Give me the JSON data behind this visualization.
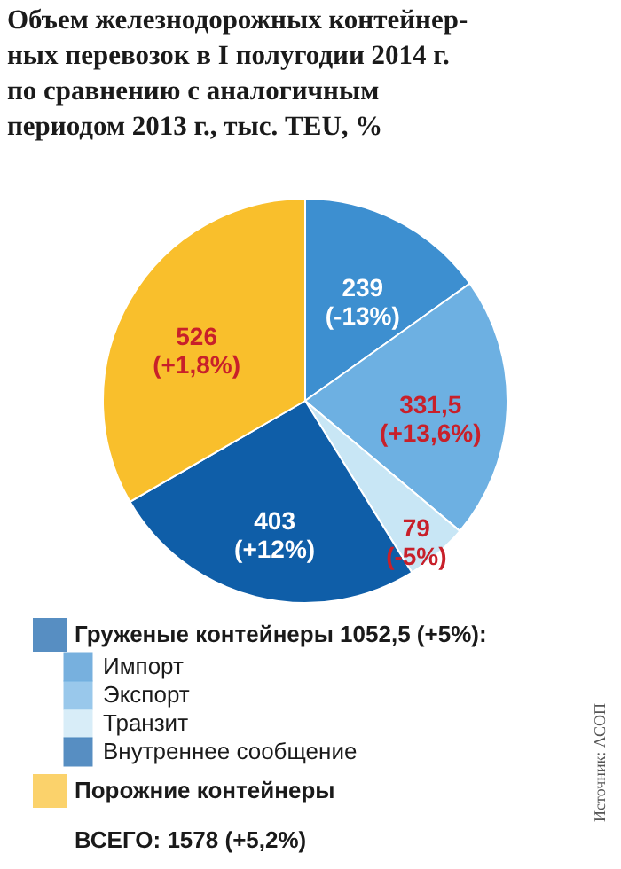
{
  "chart_data": {
    "type": "pie",
    "title": "Объем железнодорожных контейнер-\nных перевозок в I полугодии 2014 г.\nпо сравнению с аналогичным\nпериодом 2013 г., тыс. TEU, %",
    "legend_title": "Груженые контейнеры 1052,5 (+5%):",
    "categories": [
      "Импорт",
      "Экспорт",
      "Транзит",
      "Внутреннее сообщение",
      "Порожние контейнеры"
    ],
    "values": [
      239,
      331.5,
      79,
      403,
      526
    ],
    "colors": [
      "#3d8fd0",
      "#6db0e2",
      "#c8e6f5",
      "#0f5ea8",
      "#f9bf2c"
    ],
    "value_labels": [
      "239\n(-13%)",
      "331,5\n(+13,6%)",
      "79\n(-5%)",
      "403\n(+12%)",
      "526\n(+1,8%)"
    ],
    "legend": "bottom",
    "annotations": [
      "ВСЕГО: 1578 (+5,2%)",
      "Источник: АСОП"
    ]
  }
}
